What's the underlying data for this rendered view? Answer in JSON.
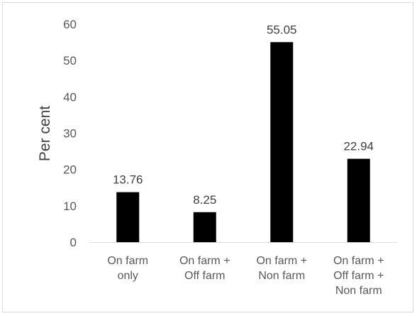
{
  "chart_data": {
    "type": "bar",
    "title": "",
    "xlabel": "",
    "ylabel": "Per cent",
    "ylim": [
      0,
      60
    ],
    "yticks": [
      0,
      10,
      20,
      30,
      40,
      50,
      60
    ],
    "grid": false,
    "legend": "none",
    "categories": [
      [
        "On farm",
        "only"
      ],
      [
        "On farm +",
        "Off farm"
      ],
      [
        "On farm +",
        "Non farm"
      ],
      [
        "On farm +",
        "Off farm +",
        "Non farm"
      ]
    ],
    "values": [
      13.76,
      8.25,
      55.05,
      22.94
    ],
    "data_labels": [
      "13.76",
      "8.25",
      "55.05",
      "22.94"
    ],
    "colors": {
      "bar": "#000000",
      "axis": "#d9d9d9",
      "text": "#595959"
    }
  }
}
